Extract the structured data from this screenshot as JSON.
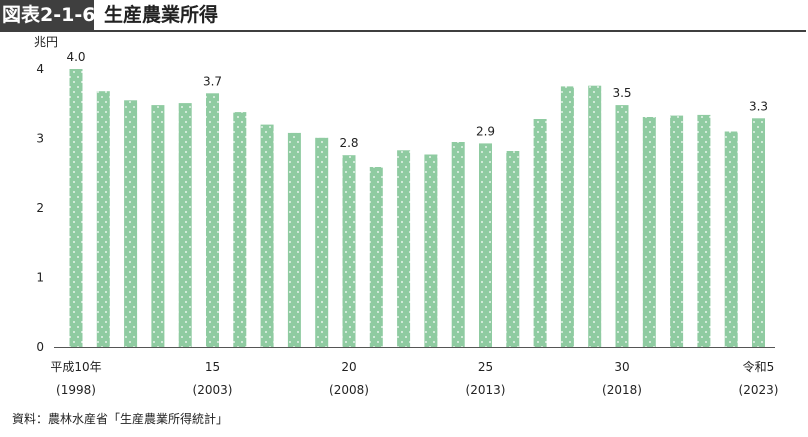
{
  "header": {
    "figure_number": "図表2-1-6",
    "title": "生産農業所得"
  },
  "source": "資料：農林水産省「生産農業所得統計」",
  "chart_data": {
    "type": "bar",
    "title": "生産農業所得",
    "ylabel": "兆円",
    "xlabel": "",
    "ylim": [
      0,
      4
    ],
    "yticks": [
      "0",
      "1",
      "2",
      "3",
      "4"
    ],
    "grid": false,
    "categories": [
      "1998",
      "1999",
      "2000",
      "2001",
      "2002",
      "2003",
      "2004",
      "2005",
      "2006",
      "2007",
      "2008",
      "2009",
      "2010",
      "2011",
      "2012",
      "2013",
      "2014",
      "2015",
      "2016",
      "2017",
      "2018",
      "2019",
      "2020",
      "2021",
      "2022",
      "2023"
    ],
    "values": [
      4.0,
      3.68,
      3.55,
      3.48,
      3.51,
      3.65,
      3.38,
      3.2,
      3.08,
      3.01,
      2.76,
      2.59,
      2.83,
      2.77,
      2.95,
      2.93,
      2.82,
      3.28,
      3.75,
      3.76,
      3.48,
      3.31,
      3.33,
      3.34,
      3.1,
      3.29
    ],
    "value_labels": [
      {
        "index": 0,
        "text": "4.0"
      },
      {
        "index": 5,
        "text": "3.7"
      },
      {
        "index": 10,
        "text": "2.8"
      },
      {
        "index": 15,
        "text": "2.9"
      },
      {
        "index": 20,
        "text": "3.5"
      },
      {
        "index": 25,
        "text": "3.3"
      }
    ],
    "x_tick_labels": [
      {
        "index": 0,
        "line1": "平成10年",
        "line2": "(1998)"
      },
      {
        "index": 5,
        "line1": "15",
        "line2": "(2003)"
      },
      {
        "index": 10,
        "line1": "20",
        "line2": "(2008)"
      },
      {
        "index": 15,
        "line1": "25",
        "line2": "(2013)"
      },
      {
        "index": 20,
        "line1": "30",
        "line2": "(2018)"
      },
      {
        "index": 25,
        "line1": "令和5",
        "line2": "(2023)"
      }
    ],
    "bar_color": "#8fcba1",
    "dot_color": "#ffffff"
  }
}
